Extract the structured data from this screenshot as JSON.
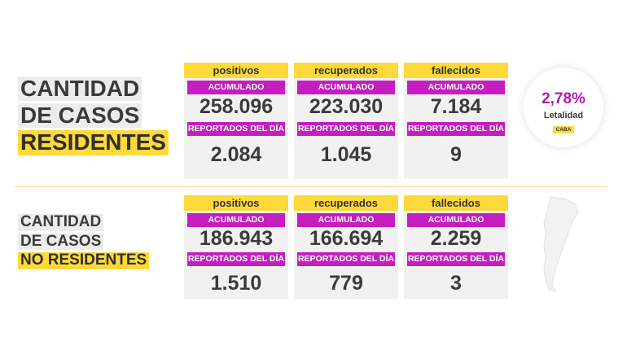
{
  "residentes": {
    "title": [
      "CANTIDAD",
      "DE CASOS",
      "RESIDENTES"
    ],
    "cards": [
      {
        "header": "positivos",
        "acumulado_label": "ACUMULADO",
        "acumulado": "258.096",
        "dia_label": "REPORTADOS DEL DÍA",
        "dia": "2.084"
      },
      {
        "header": "recuperados",
        "acumulado_label": "ACUMULADO",
        "acumulado": "223.030",
        "dia_label": "REPORTADOS DEL DÍA",
        "dia": "1.045"
      },
      {
        "header": "fallecidos",
        "acumulado_label": "ACUMULADO",
        "acumulado": "7.184",
        "dia_label": "REPORTADOS DEL DÍA",
        "dia": "9"
      }
    ],
    "letalidad": {
      "value": "2,78%",
      "label": "Letalidad",
      "tag": "CABA"
    }
  },
  "no_residentes": {
    "title": [
      "CANTIDAD",
      "DE CASOS",
      "NO RESIDENTES"
    ],
    "cards": [
      {
        "header": "positivos",
        "acumulado_label": "ACUMULADO",
        "acumulado": "186.943",
        "dia_label": "REPORTADOS DEL DÍA",
        "dia": "1.510"
      },
      {
        "header": "recuperados",
        "acumulado_label": "ACUMULADO",
        "acumulado": "166.694",
        "dia_label": "REPORTADOS DEL DÍA",
        "dia": "779"
      },
      {
        "header": "fallecidos",
        "acumulado_label": "ACUMULADO",
        "acumulado": "2.259",
        "dia_label": "REPORTADOS DEL DÍA",
        "dia": "3"
      }
    ],
    "map_icon": "argentina-map-icon"
  },
  "colors": {
    "yellow": "#ffd93a",
    "magenta": "#c41ec1",
    "text": "#3b3b3b",
    "card_bg": "#f1f1f1"
  }
}
